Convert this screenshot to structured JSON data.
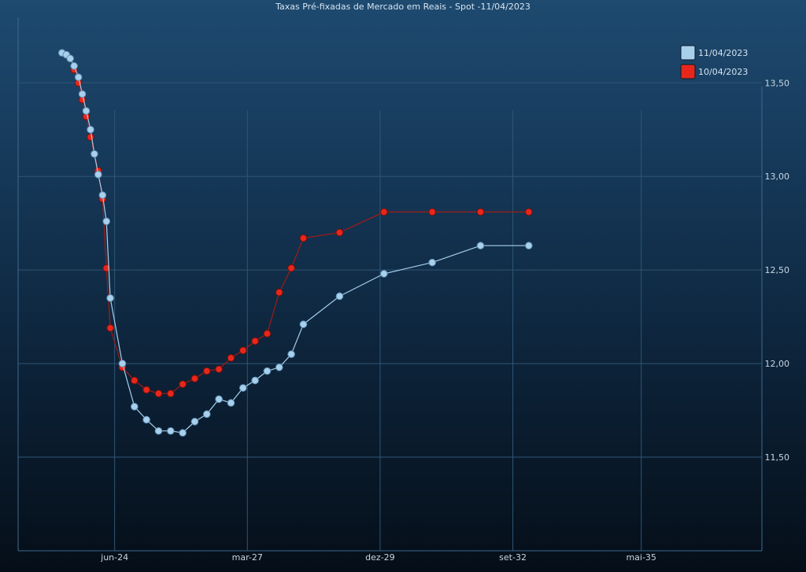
{
  "colors": {
    "series_a": "#a8d0ec",
    "series_b": "#e8271c",
    "grid": "#2f5675",
    "axis": "#3d6a8f"
  },
  "chart_data": {
    "type": "line",
    "title": "Taxas Pré-fixadas de Mercado em Reais - Spot -11/04/2023",
    "xlabel": "",
    "ylabel": "",
    "x_ticks": [
      "jun-24",
      "mar-27",
      "dez-29",
      "set-32",
      "mai-35"
    ],
    "x_tick_values": [
      2024.42,
      2027.17,
      2029.92,
      2032.67,
      2035.33
    ],
    "xlim": [
      2022.42,
      2037.83
    ],
    "y_ticks": [
      "11,50",
      "12,00",
      "12,50",
      "13,00",
      "13,50"
    ],
    "y_tick_values": [
      11.5,
      12.0,
      12.5,
      13.0,
      13.5
    ],
    "ylim": [
      11.0,
      13.85
    ],
    "legend_position": "top-right",
    "grid": true,
    "series": [
      {
        "name": "11/04/2023",
        "x": [
          2023.33,
          2023.42,
          2023.5,
          2023.58,
          2023.67,
          2023.75,
          2023.83,
          2023.92,
          2024.0,
          2024.08,
          2024.17,
          2024.25,
          2024.33,
          2024.58,
          2024.83,
          2025.08,
          2025.33,
          2025.58,
          2025.83,
          2026.08,
          2026.33,
          2026.58,
          2026.83,
          2027.08,
          2027.33,
          2027.58,
          2027.83,
          2028.08,
          2028.33,
          2029.08,
          2030.0,
          2031.0,
          2032.0,
          2033.0
        ],
        "values": [
          13.66,
          13.65,
          13.63,
          13.59,
          13.53,
          13.44,
          13.35,
          13.25,
          13.12,
          13.01,
          12.9,
          12.76,
          12.35,
          12.0,
          11.77,
          11.7,
          11.64,
          11.64,
          11.63,
          11.69,
          11.73,
          11.81,
          11.79,
          11.87,
          11.91,
          11.96,
          11.98,
          12.05,
          12.21,
          12.36,
          12.48,
          12.54,
          12.63,
          12.63
        ]
      },
      {
        "name": "10/04/2023",
        "x": [
          2023.42,
          2023.5,
          2023.58,
          2023.67,
          2023.75,
          2023.83,
          2023.92,
          2024.0,
          2024.08,
          2024.17,
          2024.25,
          2024.33,
          2024.58,
          2024.83,
          2025.08,
          2025.33,
          2025.58,
          2025.83,
          2026.08,
          2026.33,
          2026.58,
          2026.83,
          2027.08,
          2027.33,
          2027.58,
          2027.83,
          2028.08,
          2028.33,
          2029.08,
          2030.0,
          2031.0,
          2032.0,
          2033.0
        ],
        "values": [
          13.65,
          13.63,
          13.57,
          13.5,
          13.41,
          13.32,
          13.21,
          13.12,
          13.03,
          12.88,
          12.51,
          12.19,
          11.98,
          11.91,
          11.86,
          11.84,
          11.84,
          11.89,
          11.92,
          11.96,
          11.97,
          12.03,
          12.07,
          12.12,
          12.16,
          12.38,
          12.51,
          12.67,
          12.7,
          12.81,
          12.81,
          12.81,
          12.81
        ]
      }
    ]
  }
}
